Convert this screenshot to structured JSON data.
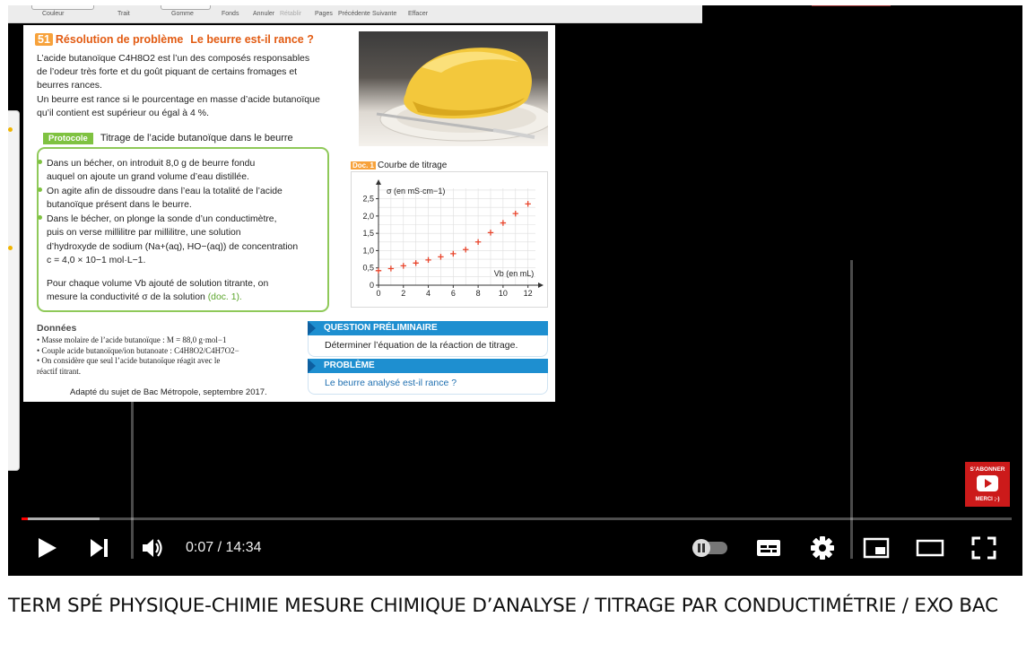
{
  "toolbar": {
    "items": [
      "Couleur",
      "Trait",
      "Gomme",
      "Fonds",
      "Annuler",
      "Rétablir",
      "Pages",
      "Précédente",
      "Suivante",
      "Effacer"
    ]
  },
  "document": {
    "number": "51",
    "heading": "Résolution de problème",
    "subheading": "Le beurre est-il rance ?",
    "intro_lines": [
      "L’acide butanoïque C4H8O2 est l’un des composés responsables",
      "de l’odeur très forte et du goût piquant de certains fromages et",
      "beurres rances.",
      "Un beurre est rance si le pourcentage en masse d’acide butanoïque",
      "qu’il contient est supérieur ou égal à 4 %."
    ],
    "protocol_tag": "Protocole",
    "protocol_title": "Titrage de l’acide butanoïque dans le beurre",
    "bullets": [
      [
        "Dans un bécher, on introduit 8,0 g de beurre fondu",
        "auquel on ajoute un grand volume d’eau distillée."
      ],
      [
        "On agite afin de dissoudre dans l’eau la totalité de l’acide",
        "butanoïque présent dans le beurre."
      ],
      [
        "Dans le bécher, on plonge la sonde d’un conductimètre,",
        "puis on verse millilitre par millilitre, une solution",
        "d’hydroxyde de sodium (Na+(aq), HO−(aq)) de concentration",
        "c = 4,0 × 10−1 mol·L−1."
      ]
    ],
    "pour_chaque_1": "Pour chaque volume Vb ajouté de solution titrante, on",
    "pour_chaque_2": "mesure la conductivité σ de la solution",
    "pour_chaque_ref": "(doc. 1).",
    "donnees_title": "Données",
    "donnees_lines": [
      "• Masse molaire de l’acide butanoïque : M = 88,0 g·mol−1",
      "• Couple acide butanoïque/ion butanoate : C4H8O2/C4H7O2−",
      "• On considère que seul l’acide butanoïque réagit avec le",
      "  réactif titrant."
    ],
    "source": "Adapté du sujet de Bac Métropole, septembre 2017.",
    "question_pre_title": "QUESTION PRÉLIMINAIRE",
    "question_pre_text": "Déterminer l’équation de la réaction de titrage.",
    "probleme_title": "PROBLÈME",
    "probleme_text": "Le beurre analysé est-il rance ?",
    "doc_tag": "Doc. 1",
    "doc_caption": "Courbe de titrage"
  },
  "chart_data": {
    "type": "scatter",
    "title": "Courbe de titrage",
    "xlabel": "Vb (en mL)",
    "ylabel": "σ (en mS·cm−1)",
    "xlim": [
      0,
      12.6
    ],
    "ylim": [
      0,
      2.8
    ],
    "xticks": [
      0,
      2,
      4,
      6,
      8,
      10,
      12
    ],
    "yticks": [
      0,
      0.5,
      1.0,
      1.5,
      2.0,
      2.5
    ],
    "ytick_labels": [
      "0",
      "0,5",
      "1,0",
      "1,5",
      "2,0",
      "2,5"
    ],
    "grid": true,
    "marker_color": "#e8452c",
    "x": [
      0,
      1,
      2,
      3,
      4,
      5,
      6,
      7,
      8,
      9,
      10,
      11,
      12
    ],
    "y": [
      0.42,
      0.48,
      0.56,
      0.64,
      0.73,
      0.82,
      0.91,
      1.03,
      1.25,
      1.52,
      1.8,
      2.07,
      2.35
    ]
  },
  "player": {
    "time": "0:07 / 14:34",
    "progress_played_fraction": 0.006,
    "progress_buffered_fraction": 0.079,
    "subscribe_top": "S’ABONNER",
    "subscribe_bottom": "MERCI ;-)",
    "accent": "#ff0000"
  },
  "video_title": "TERM SPÉ PHYSIQUE-CHIMIE MESURE CHIMIQUE D’ANALYSE / TITRAGE PAR CONDUCTIMÉTRIE / EXO BAC"
}
